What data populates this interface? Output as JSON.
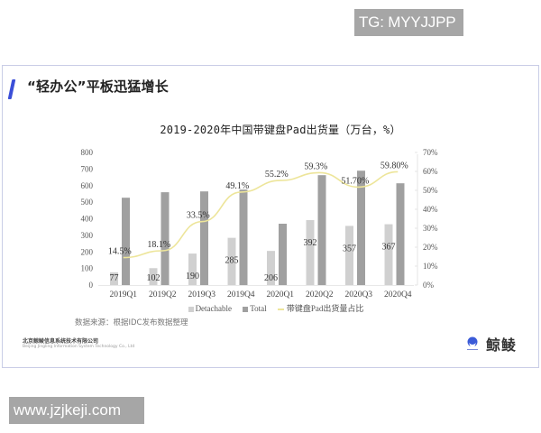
{
  "overlay": {
    "tg_label": "TG: MYYJJPP",
    "url_label": "www.jzjkeji.com"
  },
  "slide": {
    "title": "“轻办公”平板迅猛增长",
    "source_note": "数据来源：根据IDC发布数据整理",
    "company_cn": "北京鲸鲮信息系统技术有限公司",
    "company_en": "Beijing Jingling Information System Technology Co., Ltd",
    "brand_name": "鲸鲮",
    "colors": {
      "accent": "#3b4fd8",
      "detachable_bar": "#d0d0d0",
      "total_bar": "#a0a0a0",
      "share_line": "#ede59a",
      "card_border": "#c9cde6"
    }
  },
  "chart_data": {
    "type": "bar",
    "title": "2019-2020年中国带键盘Pad出货量（万台，%）",
    "categories": [
      "2019Q1",
      "2019Q2",
      "2019Q3",
      "2019Q4",
      "2020Q1",
      "2020Q2",
      "2020Q3",
      "2020Q4"
    ],
    "series": [
      {
        "name": "Detachable",
        "type": "bar",
        "axis": "left",
        "values": [
          77,
          102,
          190,
          285,
          206,
          392,
          357,
          367
        ],
        "labels": [
          "77",
          "102",
          "190",
          "285",
          "206",
          "392",
          "357",
          "367"
        ]
      },
      {
        "name": "Total",
        "type": "bar",
        "axis": "left",
        "values": [
          527,
          560,
          565,
          576,
          370,
          663,
          690,
          614
        ]
      },
      {
        "name": "带键盘Pad出货量占比",
        "type": "line",
        "axis": "right",
        "values": [
          14.5,
          18.1,
          33.5,
          49.1,
          55.2,
          59.3,
          51.7,
          59.8
        ],
        "labels": [
          "14.5%",
          "18.1%",
          "33.5%",
          "49.1%",
          "55.2%",
          "59.3%",
          "51.70%",
          "59.80%"
        ]
      }
    ],
    "y_left": {
      "ylim": [
        0,
        800
      ],
      "ticks": [
        "0",
        "100",
        "200",
        "300",
        "400",
        "500",
        "600",
        "700",
        "800"
      ]
    },
    "y_right": {
      "ylim": [
        0,
        70
      ],
      "ticks": [
        "0%",
        "10%",
        "20%",
        "30%",
        "40%",
        "50%",
        "60%",
        "70%"
      ]
    },
    "xlabel": "",
    "ylabel": "",
    "grid": false,
    "legend": {
      "position": "bottom",
      "entries": [
        "Detachable",
        "Total",
        "带键盘Pad出货量占比"
      ]
    }
  }
}
